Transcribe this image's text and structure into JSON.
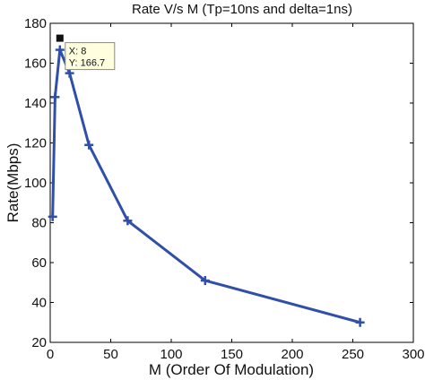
{
  "chart_data": {
    "type": "line",
    "title": "Rate V/s M (Tp=10ns and delta=1ns)",
    "xlabel": "M (Order Of Modulation)",
    "ylabel": "Rate(Mbps)",
    "xlim": [
      0,
      300
    ],
    "ylim": [
      20,
      180
    ],
    "xticks": [
      "0",
      "50",
      "100",
      "150",
      "200",
      "250",
      "300"
    ],
    "yticks": [
      "20",
      "40",
      "60",
      "80",
      "100",
      "120",
      "140",
      "160",
      "180"
    ],
    "grid": false,
    "x": [
      2,
      4,
      8,
      16,
      32,
      64,
      128,
      256
    ],
    "y": [
      83,
      143,
      166.7,
      155,
      119,
      81,
      51,
      30
    ],
    "line_color": "#2f4fa8",
    "datatip": {
      "x": 8,
      "y": 166.7,
      "x_text": "X: 8",
      "y_text": "Y: 166.7"
    }
  }
}
